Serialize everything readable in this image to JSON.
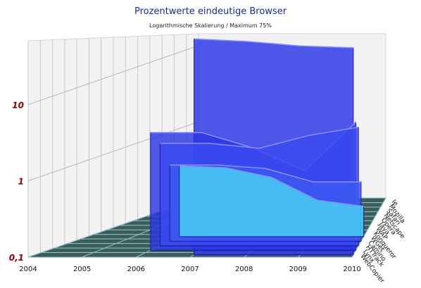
{
  "chart_data": {
    "type": "area",
    "title": "Prozentwerte eindeutige Browser",
    "subtitle": "Logarithmische Skalierung / Maximum 75%",
    "y_scale": "log",
    "ylim": [
      0.1,
      75
    ],
    "y_ticks": [
      "0,1",
      "1",
      "10"
    ],
    "x_ticks": [
      "2004",
      "2005",
      "2006",
      "2007",
      "2008",
      "2009",
      "2010"
    ],
    "depth_labels": [
      "Ie",
      "Mozilla",
      "Safari",
      "Netscape",
      "Opera",
      "Java",
      "WAP",
      "Konqueror",
      "WGet",
      "Camino",
      "HTTrack",
      "Lynx",
      "WebCopier"
    ],
    "series": [
      {
        "name": "Ie",
        "color": "#2a32e6",
        "x": [
          2007,
          2008,
          2009,
          2010
        ],
        "values": [
          68,
          63,
          55,
          52
        ]
      },
      {
        "name": "Mozilla",
        "color": "#2a36e2",
        "x": [
          2006,
          2007,
          2008,
          2009,
          2010
        ],
        "values": [
          3.5,
          3.5,
          2.2,
          1.1,
          4.8
        ]
      },
      {
        "name": "Safari",
        "color": "#3a4af0",
        "x": [
          2006,
          2007,
          2008,
          2009,
          2010
        ],
        "values": [
          2.2,
          2.2,
          1.9,
          2.8,
          3.6
        ]
      },
      {
        "name": "Netscape",
        "color": "#3c58f0",
        "x": [
          2006,
          2007,
          2008,
          2009,
          2010
        ],
        "values": [
          1.0,
          1.0,
          0.9,
          0.6,
          0.6
        ]
      },
      {
        "name": "Opera",
        "color": "#4ad2f4",
        "x": [
          2006,
          2007,
          2008,
          2009,
          2010
        ],
        "values": [
          0.85,
          0.8,
          0.6,
          0.3,
          0.25
        ]
      }
    ],
    "colors": {
      "floor": "#3a5e5e",
      "floor_grid": "#9ec4c4",
      "wall": "#f2f2f5",
      "wall_grid": "#c8c8cc",
      "tick_label": "#8b0000",
      "title": "#1a2a8c"
    }
  }
}
